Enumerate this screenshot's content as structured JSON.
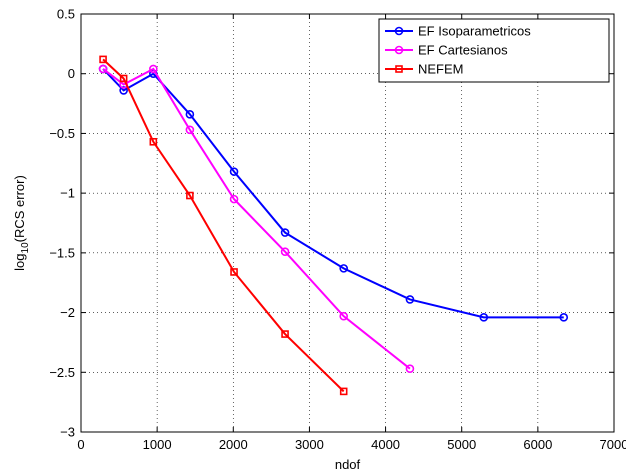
{
  "chart_data": {
    "type": "line",
    "title": "",
    "xlabel": "ndof",
    "ylabel_main": "log",
    "ylabel_sub": "10",
    "ylabel_rest": "(RCS error)",
    "xlim": [
      0,
      7000
    ],
    "ylim": [
      -3,
      0.5
    ],
    "xticks": [
      0,
      1000,
      2000,
      3000,
      4000,
      5000,
      6000,
      7000
    ],
    "yticks": [
      -3,
      -2.5,
      -2,
      -1.5,
      -1,
      -0.5,
      0,
      0.5
    ],
    "xtick_labels": [
      "0",
      "1000",
      "2000",
      "3000",
      "4000",
      "5000",
      "6000",
      "7000"
    ],
    "ytick_labels": [
      "−3",
      "−2.5",
      "−2",
      "−1.5",
      "−1",
      "−0.5",
      "0",
      "0.5"
    ],
    "grid": true,
    "grid_style": "dotted",
    "legend_position": "top-right",
    "series": [
      {
        "name": "EF Isoparametricos",
        "color": "#0000ff",
        "marker": "circle",
        "x": [
          290,
          560,
          950,
          1430,
          2010,
          2680,
          3450,
          4320,
          5290,
          6340
        ],
        "y": [
          0.04,
          -0.14,
          0.0,
          -0.34,
          -0.82,
          -1.33,
          -1.63,
          -1.89,
          -2.04,
          -2.04
        ]
      },
      {
        "name": "EF Cartesianos",
        "color": "#ff00ff",
        "marker": "circle",
        "x": [
          290,
          560,
          950,
          1430,
          2010,
          2680,
          3450,
          4320
        ],
        "y": [
          0.04,
          -0.09,
          0.04,
          -0.47,
          -1.05,
          -1.49,
          -2.03,
          -2.47
        ]
      },
      {
        "name": "NEFEM",
        "color": "#ff0000",
        "marker": "square",
        "x": [
          290,
          560,
          950,
          1430,
          2010,
          2680,
          3450
        ],
        "y": [
          0.12,
          -0.04,
          -0.57,
          -1.02,
          -1.66,
          -2.18,
          -2.66
        ]
      }
    ]
  }
}
